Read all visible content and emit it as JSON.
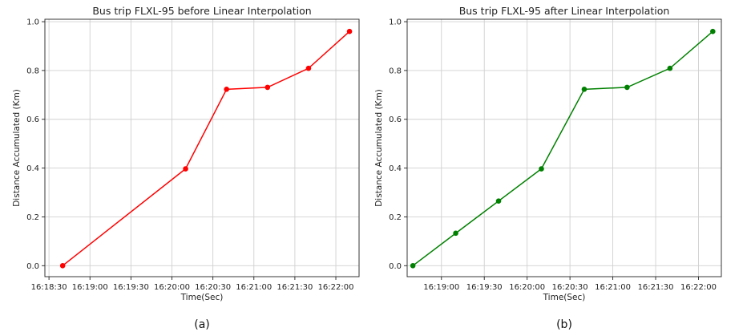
{
  "chart_data": [
    {
      "type": "line",
      "title": "Bus trip FLXL-95 before Linear Interpolation",
      "xlabel": "Time(Sec)",
      "ylabel": "Distance Accumulated (Km)",
      "caption": "(a)",
      "color": "#ff0000",
      "grid": true,
      "xlim": [
        "16:18:27",
        "16:22:17"
      ],
      "ylim": [
        -0.045,
        1.01
      ],
      "xticks": [
        "16:18:30",
        "16:19:00",
        "16:19:30",
        "16:20:00",
        "16:20:30",
        "16:21:00",
        "16:21:30",
        "16:22:00"
      ],
      "yticks": [
        0.0,
        0.2,
        0.4,
        0.6,
        0.8,
        1.0
      ],
      "ytick_labels": [
        "0.0",
        "0.2",
        "0.4",
        "0.6",
        "0.8",
        "1.0"
      ],
      "series": [
        {
          "x": [
            "16:18:40",
            "16:20:10",
            "16:20:40",
            "16:21:10",
            "16:21:40",
            "16:22:10"
          ],
          "y": [
            0.0,
            0.397,
            0.723,
            0.731,
            0.809,
            0.96
          ]
        }
      ]
    },
    {
      "type": "line",
      "title": "Bus trip FLXL-95 after Linear Interpolation",
      "xlabel": "Time(Sec)",
      "ylabel": "Distance Accumulated (Km)",
      "caption": "(b)",
      "color": "#008000",
      "grid": true,
      "xlim": [
        "16:18:36",
        "16:22:16"
      ],
      "ylim": [
        -0.045,
        1.01
      ],
      "xticks": [
        "16:19:00",
        "16:19:30",
        "16:20:00",
        "16:20:30",
        "16:21:00",
        "16:21:30",
        "16:22:00"
      ],
      "yticks": [
        0.0,
        0.2,
        0.4,
        0.6,
        0.8,
        1.0
      ],
      "ytick_labels": [
        "0.0",
        "0.2",
        "0.4",
        "0.6",
        "0.8",
        "1.0"
      ],
      "series": [
        {
          "x": [
            "16:18:40",
            "16:19:10",
            "16:19:40",
            "16:20:10",
            "16:20:40",
            "16:21:10",
            "16:21:40",
            "16:22:10"
          ],
          "y": [
            0.0,
            0.133,
            0.265,
            0.397,
            0.723,
            0.731,
            0.809,
            0.96
          ]
        }
      ]
    }
  ]
}
